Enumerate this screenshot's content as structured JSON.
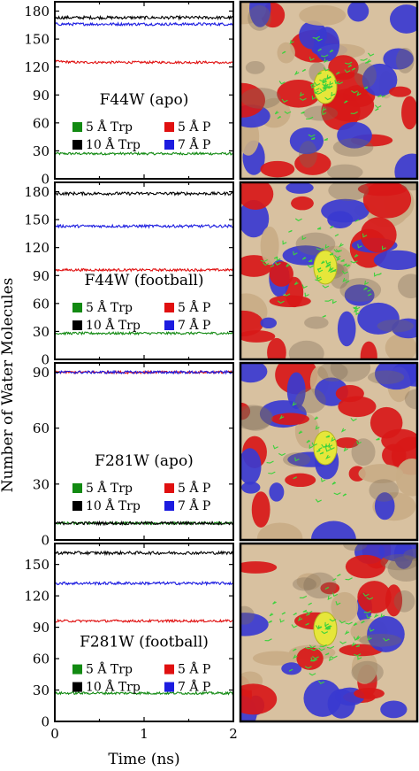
{
  "figure": {
    "ylabel": "Number of Water Molecules",
    "xlabel": "Time (ns)",
    "xticks": [
      "0",
      "1",
      "2"
    ]
  },
  "colors": {
    "5A_Trp": "#128a12",
    "10A_Trp": "#000000",
    "5A_P": "#e01010",
    "7A_P": "#1c1ce0",
    "protein_surface": "#d8c1a0",
    "positive_patch": "#3a3ad0",
    "negative_patch": "#d81818",
    "ligand": "#e6e63a",
    "water": "#3cd23c"
  },
  "chart_data": [
    {
      "type": "line",
      "title": "F44W (apo)",
      "xlim": [
        0,
        2
      ],
      "ylim": [
        0,
        190
      ],
      "yticks": [
        0,
        30,
        60,
        90,
        120,
        150,
        180
      ],
      "series": [
        {
          "name": "5 Å Trp",
          "color": "#128a12",
          "values": [
            27,
            27,
            27,
            27,
            27,
            27,
            27,
            27,
            27
          ]
        },
        {
          "name": "5 Å P",
          "color": "#e01010",
          "values": [
            126,
            125,
            125,
            125,
            125,
            125,
            125,
            125,
            124
          ]
        },
        {
          "name": "10 Å Trp",
          "color": "#000000",
          "values": [
            173,
            173,
            173,
            173,
            173,
            173,
            173,
            173,
            173
          ]
        },
        {
          "name": "7 Å P",
          "color": "#1c1ce0",
          "values": [
            166,
            166,
            166,
            166,
            166,
            166,
            166,
            166,
            166
          ]
        }
      ],
      "legend_order": [
        0,
        1,
        2,
        3
      ]
    },
    {
      "type": "line",
      "title": "F44W (football)",
      "xlim": [
        0,
        2
      ],
      "ylim": [
        0,
        190
      ],
      "yticks": [
        0,
        30,
        60,
        90,
        120,
        150,
        180
      ],
      "series": [
        {
          "name": "5 Å Trp",
          "color": "#128a12",
          "values": [
            28,
            28,
            28,
            28,
            28,
            28,
            28,
            28,
            28
          ]
        },
        {
          "name": "5 Å P",
          "color": "#e01010",
          "values": [
            96,
            96,
            96,
            96,
            96,
            96,
            96,
            96,
            96
          ]
        },
        {
          "name": "10 Å Trp",
          "color": "#000000",
          "values": [
            178,
            178,
            178,
            178,
            178,
            178,
            178,
            178,
            178
          ]
        },
        {
          "name": "7 Å P",
          "color": "#1c1ce0",
          "values": [
            143,
            143,
            143,
            143,
            143,
            143,
            143,
            143,
            143
          ]
        }
      ],
      "legend_order": [
        0,
        1,
        2,
        3
      ]
    },
    {
      "type": "line",
      "title": "F281W (apo)",
      "xlim": [
        0,
        2
      ],
      "ylim": [
        0,
        95
      ],
      "yticks": [
        0,
        30,
        60,
        90
      ],
      "series": [
        {
          "name": "5 Å Trp",
          "color": "#128a12",
          "values": [
            9,
            9,
            9,
            9,
            9,
            9,
            9,
            9,
            9
          ]
        },
        {
          "name": "5 Å P",
          "color": "#e01010",
          "values": [
            90,
            90,
            90,
            90,
            90,
            90,
            90,
            90,
            90
          ]
        },
        {
          "name": "10 Å Trp",
          "color": "#000000",
          "values": [
            9,
            9,
            9,
            9,
            9,
            9,
            9,
            9,
            9
          ]
        },
        {
          "name": "7 Å P",
          "color": "#1c1ce0",
          "values": [
            90,
            90,
            90,
            90,
            90,
            90,
            90,
            90,
            90
          ]
        }
      ],
      "legend_order": [
        0,
        1,
        2,
        3
      ]
    },
    {
      "type": "line",
      "title": "F281W (football)",
      "xlim": [
        0,
        2
      ],
      "ylim": [
        0,
        170
      ],
      "yticks": [
        0,
        30,
        60,
        90,
        120,
        150
      ],
      "series": [
        {
          "name": "5 Å Trp",
          "color": "#128a12",
          "values": [
            27,
            27,
            27,
            27,
            27,
            27,
            27,
            27,
            27
          ]
        },
        {
          "name": "5 Å P",
          "color": "#e01010",
          "values": [
            96,
            96,
            96,
            96,
            96,
            96,
            96,
            96,
            96
          ]
        },
        {
          "name": "10 Å Trp",
          "color": "#000000",
          "values": [
            161,
            161,
            161,
            161,
            161,
            161,
            161,
            161,
            161
          ]
        },
        {
          "name": "7 Å P",
          "color": "#1c1ce0",
          "values": [
            132,
            132,
            132,
            132,
            132,
            132,
            132,
            132,
            132
          ]
        }
      ],
      "legend_order": [
        0,
        1,
        2,
        3
      ]
    }
  ],
  "images": [
    {
      "subject": "protein-surface-render"
    },
    {
      "subject": "protein-surface-render"
    },
    {
      "subject": "protein-surface-render"
    },
    {
      "subject": "protein-surface-render"
    }
  ]
}
